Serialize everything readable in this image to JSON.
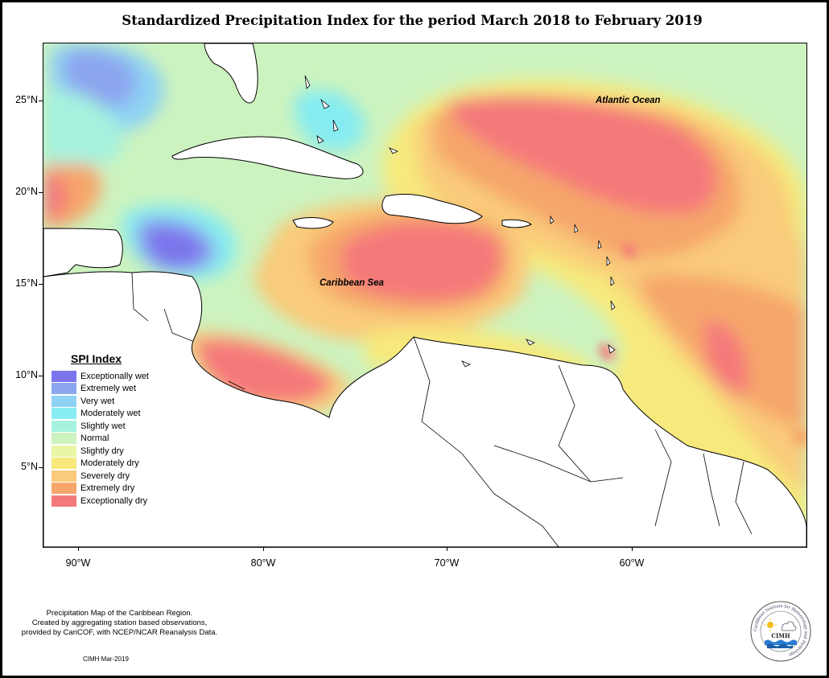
{
  "title": "Standardized Precipitation Index for the period March 2018 to February 2019",
  "axes": {
    "y_ticks": [
      "25°N",
      "20°N",
      "15°N",
      "10°N",
      "5°N"
    ],
    "x_ticks": [
      "90°W",
      "80°W",
      "70°W",
      "60°W"
    ]
  },
  "labels": {
    "atlantic": "Atlantic Ocean",
    "caribbean": "Caribbean Sea"
  },
  "legend": {
    "title": "SPI Index",
    "items": [
      {
        "label": "Exceptionally wet",
        "color": "#7b74ec"
      },
      {
        "label": "Extremely wet",
        "color": "#8ca6ef"
      },
      {
        "label": "Very wet",
        "color": "#8ed2f4"
      },
      {
        "label": "Moderately wet",
        "color": "#86ecf1"
      },
      {
        "label": "Slightly wet",
        "color": "#a6f2de"
      },
      {
        "label": "Normal",
        "color": "#ccf3bf"
      },
      {
        "label": "Slightly dry",
        "color": "#e9f6a4"
      },
      {
        "label": "Moderately dry",
        "color": "#f7e97b"
      },
      {
        "label": "Severely dry",
        "color": "#f9cb7a"
      },
      {
        "label": "Extremely dry",
        "color": "#f6a66b"
      },
      {
        "label": "Exceptionally dry",
        "color": "#f4797a"
      }
    ]
  },
  "credit": {
    "line1": "Precipitation Map of the Caribbean Region.",
    "line2": "Created by aggregating station based observations,",
    "line3": "provided by CariCOF, with NCEP/NCAR Reanalysis Data.",
    "date": "CIMH Mar-2019"
  },
  "logo": {
    "text": "CIMH",
    "ring_text": "Caribbean Institute for Meteorology and Hydrology",
    "icon": "cimh-seal-logo"
  }
}
